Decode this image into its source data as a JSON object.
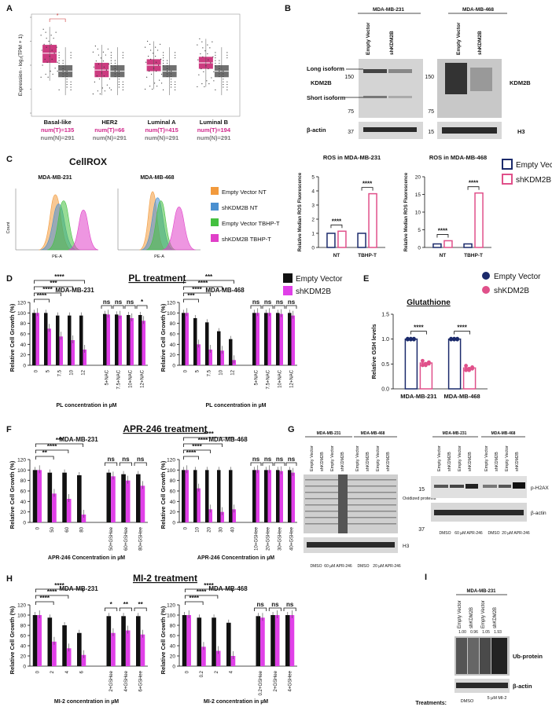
{
  "colors": {
    "ev": "#111111",
    "sh": "#e040e8",
    "ev_line": "#1b2a6b",
    "sh_line": "#e0508a",
    "box_t": "#cc3b80",
    "box_n": "#707070",
    "t_text": "#d0288c",
    "n_text": "#777777",
    "flow_orange": "#f29a3d",
    "flow_blue": "#4a90d0",
    "flow_green": "#44c040",
    "flow_pink": "#e040c8",
    "blot_bg": "#d4d4d4",
    "blot_band": "#2a2a2a"
  },
  "panelA": {
    "letter": "A",
    "ylabel": "Expression - log₂(TPM + 1)",
    "groups": [
      {
        "name": "Basal-like",
        "t": "num(T)=135",
        "n": "num(N)=291",
        "t_median": 5.0,
        "n_median": 3.5,
        "t_q": [
          4.2,
          5.7
        ],
        "n_q": [
          3.0,
          4.0
        ]
      },
      {
        "name": "HER2",
        "t": "num(T)=66",
        "n": "num(N)=291",
        "t_median": 3.6,
        "n_median": 3.5,
        "t_q": [
          3.0,
          4.2
        ],
        "n_q": [
          3.0,
          4.0
        ]
      },
      {
        "name": "Luminal A",
        "t": "num(T)=415",
        "n": "num(N)=291",
        "t_median": 4.0,
        "n_median": 3.5,
        "t_q": [
          3.5,
          4.5
        ],
        "n_q": [
          3.0,
          4.0
        ]
      },
      {
        "name": "Luminal B",
        "t": "num(T)=194",
        "n": "num(N)=291",
        "t_median": 4.2,
        "n_median": 3.5,
        "t_q": [
          3.7,
          4.7
        ],
        "n_q": [
          3.0,
          4.0
        ]
      }
    ],
    "ylim": [
      0,
      8
    ],
    "sig": "*"
  },
  "panelB": {
    "letter": "B",
    "cell1": "MDA-MB-231",
    "cell2": "MDA-MB-468",
    "lanes": [
      "Empty Vector",
      "shKDM2B"
    ],
    "long_iso": "Long isoform",
    "kdm": "KDM2B",
    "short_iso": "Short isoform",
    "mw1": [
      "150",
      "75",
      "37"
    ],
    "mw2": [
      "150",
      "75",
      "15"
    ],
    "actin": "β-actin",
    "kdm_right": "KDM2B",
    "h3": "H3"
  },
  "panelC": {
    "letter": "C",
    "title": "CellROX",
    "cell1": "MDA-MB-231",
    "cell2": "MDA-MB-468",
    "legend": [
      "Empty Vector NT",
      "shKDM2B NT",
      "Empty Vector TBHP-T",
      "shKDM2B TBHP-T"
    ],
    "xlabel": "PE-A",
    "ylabel": "Count",
    "ros1": {
      "title": "ROS in MDA-MB-231",
      "ylabel": "Relative Median ROS Fluorescence",
      "yticks": [
        "0",
        "1",
        "2",
        "3",
        "4",
        "5"
      ],
      "cats": [
        "NT",
        "TBHP-T"
      ],
      "sig": [
        "****",
        "****"
      ]
    },
    "ros2": {
      "title": "ROS in MDA-MB-468",
      "ylabel": "Relative Median ROS Fluorescence",
      "yticks": [
        "0",
        "5",
        "10",
        "15",
        "20"
      ],
      "cats": [
        "NT",
        "TBHP-T"
      ],
      "sig": [
        "****",
        "****"
      ]
    },
    "ros_legend": [
      "Empty Vector",
      "shKDM2B"
    ]
  },
  "panelD": {
    "letter": "D",
    "title": "PL treatment",
    "cell1": "MDA-MB-231",
    "cell2": "MDA-MB-468",
    "ylabel": "Relative Cell Growth (%)",
    "xlabel": "PL concentration in µM",
    "legend": [
      "Empty Vector",
      "shKDM2B"
    ],
    "yticks": [
      "0",
      "20",
      "40",
      "60",
      "80",
      "100",
      "120"
    ],
    "cats1": [
      "0",
      "5",
      "7.5",
      "10",
      "12",
      "5+NAC",
      "7.5+NAC",
      "10+NAC",
      "12+NAC"
    ],
    "cats2": [
      "0",
      "5",
      "7.5",
      "10",
      "12",
      "5+NAC",
      "7.5+NAC",
      "10+NAC",
      "12+NAC"
    ],
    "sig1": [
      "****",
      "****",
      "***",
      "****",
      "ns",
      "ns",
      "ns",
      "*"
    ],
    "sig2": [
      "***",
      "****",
      "****",
      "***",
      "ns",
      "ns",
      "ns",
      "ns"
    ]
  },
  "panelE": {
    "letter": "E",
    "title": "Glutathione",
    "ylabel": "Relative GSH levels",
    "cats": [
      "MDA-MB-231",
      "MDA-MB-468"
    ],
    "yticks": [
      "0.0",
      "0.5",
      "1.0",
      "1.5"
    ],
    "legend": [
      "Empty Vector",
      "shKDM2B"
    ],
    "sig": [
      "****",
      "****"
    ]
  },
  "panelF": {
    "letter": "F",
    "title": "APR-246 treatment",
    "cell1": "MDA-MB-231",
    "cell2": "MDA-MB-468",
    "ylabel": "Relative Cell Growth (%)",
    "xlabel": "APR-246 Concentration in µM",
    "yticks": [
      "0",
      "20",
      "40",
      "60",
      "80",
      "100",
      "120"
    ],
    "cats1": [
      "0",
      "50",
      "60",
      "80",
      "50+GSHee",
      "60+GSHee",
      "80+GSHee"
    ],
    "cats2": [
      "0",
      "10",
      "20",
      "30",
      "40",
      "10+GSHee",
      "20+GSHee",
      "30+GSHee",
      "40+GSHee"
    ],
    "sig1": [
      "**",
      "****",
      "***",
      "ns",
      "ns",
      "ns"
    ],
    "sig2": [
      "****",
      "****",
      "****",
      "****",
      "ns",
      "ns",
      "ns",
      "ns"
    ]
  },
  "panelG": {
    "letter": "G",
    "cell1": "MDA-MB-231",
    "cell2": "MDA-MB-468",
    "lanes": [
      "Empty Vector",
      "shKDM2B",
      "Empty Vector",
      "shKDM2B"
    ],
    "ox": "Oxidized proteins",
    "h3": "H3",
    "ph2ax": "p-H2AX",
    "actin": "β-actin",
    "mw": [
      "15",
      "37"
    ],
    "tr1": [
      "DMSO",
      "60 µM APR-246"
    ],
    "tr2": [
      "DMSO",
      "20 µM APR-246"
    ]
  },
  "panelH": {
    "letter": "H",
    "title": "MI-2 treatment",
    "cell1": "MDA-MB-231",
    "cell2": "MDA-MB-468",
    "ylabel": "Relative Cell Growth (%)",
    "xlabel": "MI-2 concentration in µM",
    "yticks": [
      "0",
      "20",
      "40",
      "60",
      "80",
      "100",
      "120"
    ],
    "cats1": [
      "0",
      "2",
      "4",
      "6",
      "2+GSHee",
      "4+GSHee",
      "6+GSHee"
    ],
    "cats2": [
      "0",
      "0.2",
      "2",
      "4",
      "0.2+GSHee",
      "2+GSHee",
      "4+GSHee"
    ],
    "sig1": [
      "****",
      "****",
      "****",
      "*",
      "**",
      "**"
    ],
    "sig2": [
      "****",
      "****",
      "****",
      "ns",
      "ns",
      "ns"
    ]
  },
  "panelI": {
    "letter": "I",
    "cell": "MDA-MB-231",
    "lanes": [
      "Empty Vector",
      "shKDM2B",
      "Empty Vector",
      "shKDM2B"
    ],
    "quant": [
      "1.00",
      "0.96",
      "1.05",
      "1.93"
    ],
    "ub": "Ub-protein",
    "actin": "β-actin",
    "treat_label": "Treatments:",
    "tr": [
      "DMSO",
      "5 µM MI-2"
    ]
  },
  "chart_data": [
    {
      "id": "ros231",
      "type": "bar",
      "categories": [
        "NT",
        "TBHP-T"
      ],
      "ylim": [
        0,
        5
      ],
      "series": [
        {
          "name": "Empty Vector",
          "values": [
            1.0,
            1.0
          ]
        },
        {
          "name": "shKDM2B",
          "values": [
            1.15,
            3.8
          ]
        }
      ]
    },
    {
      "id": "ros468",
      "type": "bar",
      "categories": [
        "NT",
        "TBHP-T"
      ],
      "ylim": [
        0,
        20
      ],
      "series": [
        {
          "name": "Empty Vector",
          "values": [
            1.0,
            1.0
          ]
        },
        {
          "name": "shKDM2B",
          "values": [
            1.9,
            15.4
          ]
        }
      ]
    },
    {
      "id": "D231",
      "type": "bar",
      "categories": [
        "0",
        "5",
        "7.5",
        "10",
        "12",
        "5+NAC",
        "7.5+NAC",
        "10+NAC",
        "12+NAC"
      ],
      "ylim": [
        0,
        120
      ],
      "series": [
        {
          "name": "Empty Vector",
          "values": [
            100,
            100,
            95,
            95,
            95,
            98,
            97,
            96,
            96
          ]
        },
        {
          "name": "shKDM2B",
          "values": [
            100,
            70,
            55,
            48,
            30,
            97,
            95,
            90,
            85
          ]
        }
      ]
    },
    {
      "id": "D468",
      "type": "bar",
      "categories": [
        "0",
        "5",
        "7.5",
        "10",
        "12",
        "5+NAC",
        "7.5+NAC",
        "10+NAC",
        "12+NAC"
      ],
      "ylim": [
        0,
        120
      ],
      "series": [
        {
          "name": "Empty Vector",
          "values": [
            100,
            90,
            82,
            65,
            50,
            100,
            100,
            100,
            100
          ]
        },
        {
          "name": "shKDM2B",
          "values": [
            100,
            40,
            30,
            28,
            10,
            100,
            100,
            98,
            95
          ]
        }
      ]
    },
    {
      "id": "E",
      "type": "bar",
      "categories": [
        "MDA-MB-231",
        "MDA-MB-468"
      ],
      "ylim": [
        0,
        1.5
      ],
      "series": [
        {
          "name": "Empty Vector",
          "values": [
            1.0,
            1.0
          ]
        },
        {
          "name": "shKDM2B",
          "values": [
            0.52,
            0.42
          ]
        }
      ]
    },
    {
      "id": "F231",
      "type": "bar",
      "categories": [
        "0",
        "50",
        "60",
        "80",
        "50+GSHee",
        "60+GSHee",
        "80+GSHee"
      ],
      "ylim": [
        0,
        120
      ],
      "series": [
        {
          "name": "Empty Vector",
          "values": [
            100,
            95,
            95,
            90,
            95,
            92,
            92
          ]
        },
        {
          "name": "shKDM2B",
          "values": [
            100,
            55,
            45,
            15,
            88,
            80,
            70
          ]
        }
      ]
    },
    {
      "id": "F468",
      "type": "bar",
      "categories": [
        "0",
        "10",
        "20",
        "30",
        "40",
        "10+GSHee",
        "20+GSHee",
        "30+GSHee",
        "40+GSHee"
      ],
      "ylim": [
        0,
        120
      ],
      "series": [
        {
          "name": "Empty Vector",
          "values": [
            100,
            100,
            100,
            100,
            100,
            100,
            100,
            100,
            100
          ]
        },
        {
          "name": "shKDM2B",
          "values": [
            100,
            65,
            25,
            20,
            25,
            100,
            100,
            98,
            95
          ]
        }
      ]
    },
    {
      "id": "H231",
      "type": "bar",
      "categories": [
        "0",
        "2",
        "4",
        "6",
        "2+GSHee",
        "4+GSHee",
        "6+GSHee"
      ],
      "ylim": [
        0,
        120
      ],
      "series": [
        {
          "name": "Empty Vector",
          "values": [
            100,
            95,
            80,
            65,
            98,
            98,
            98
          ]
        },
        {
          "name": "shKDM2B",
          "values": [
            100,
            48,
            35,
            22,
            65,
            70,
            62
          ]
        }
      ]
    },
    {
      "id": "H468",
      "type": "bar",
      "categories": [
        "0",
        "0.2",
        "2",
        "4",
        "0.2+GSHee",
        "2+GSHee",
        "4+GSHee"
      ],
      "ylim": [
        0,
        120
      ],
      "series": [
        {
          "name": "Empty Vector",
          "values": [
            100,
            95,
            95,
            85,
            98,
            100,
            100
          ]
        },
        {
          "name": "shKDM2B",
          "values": [
            100,
            38,
            30,
            20,
            95,
            100,
            100
          ]
        }
      ]
    }
  ]
}
